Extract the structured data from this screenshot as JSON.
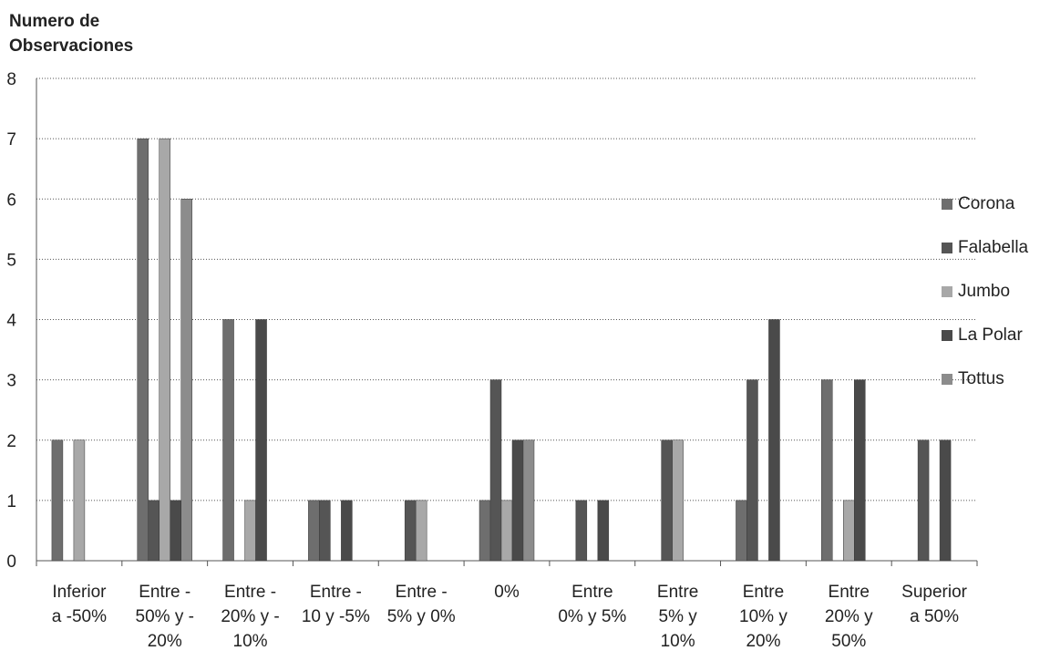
{
  "chart_data": {
    "type": "bar",
    "ylabel": "Numero de Observaciones",
    "ylim": [
      0,
      8
    ],
    "yticks": [
      "0",
      "1",
      "2",
      "3",
      "4",
      "5",
      "6",
      "7",
      "8"
    ],
    "grid": true,
    "legend_position": "right",
    "categories": [
      [
        "Inferior",
        "a -50%"
      ],
      [
        "Entre -",
        "50% y -",
        "20%"
      ],
      [
        "Entre -",
        "20% y -",
        "10%"
      ],
      [
        "Entre -",
        "10 y -5%"
      ],
      [
        "Entre -",
        "5% y 0%"
      ],
      [
        "0%"
      ],
      [
        "Entre",
        "0% y 5%"
      ],
      [
        "Entre",
        "5% y",
        "10%"
      ],
      [
        "Entre",
        "10% y",
        "20%"
      ],
      [
        "Entre",
        "20% y",
        "50%"
      ],
      [
        "Superior",
        "a 50%"
      ]
    ],
    "series": [
      {
        "name": "Corona",
        "color": "#6e6e6e",
        "values": [
          2,
          7,
          4,
          1,
          0,
          1,
          0,
          0,
          1,
          3,
          0
        ]
      },
      {
        "name": "Falabella",
        "color": "#555555",
        "values": [
          0,
          1,
          0,
          1,
          1,
          3,
          1,
          2,
          3,
          0,
          2
        ]
      },
      {
        "name": "Jumbo",
        "color": "#a8a8a8",
        "values": [
          2,
          7,
          1,
          0,
          1,
          1,
          0,
          2,
          0,
          1,
          0
        ]
      },
      {
        "name": "La Polar",
        "color": "#4a4a4a",
        "values": [
          0,
          1,
          4,
          1,
          0,
          2,
          1,
          0,
          4,
          3,
          2
        ]
      },
      {
        "name": "Tottus",
        "color": "#8c8c8c",
        "values": [
          0,
          6,
          0,
          0,
          0,
          2,
          0,
          0,
          0,
          0,
          0
        ]
      }
    ]
  },
  "title_lines": [
    "Numero de",
    "Observaciones"
  ]
}
